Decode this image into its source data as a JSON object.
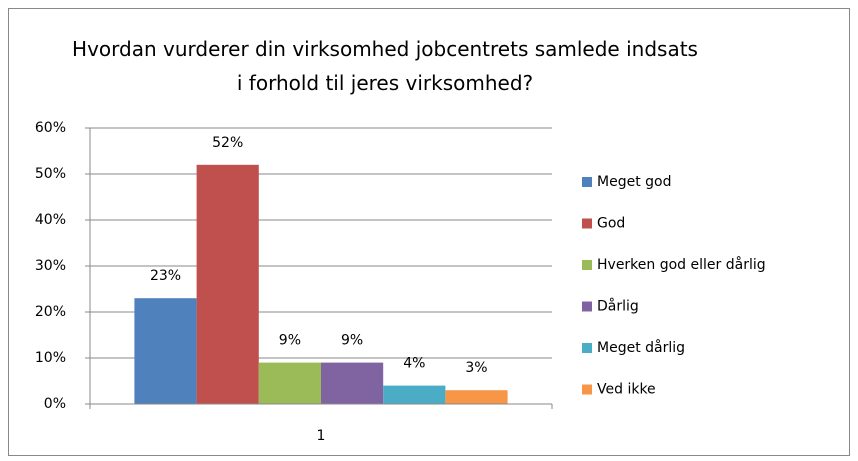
{
  "chart_data": {
    "type": "bar",
    "title": "Hvordan vurderer din virksomhed jobcentrets samlede indsats i forhold til jeres virksomhed?",
    "categories": [
      "1"
    ],
    "series": [
      {
        "name": "Meget god",
        "color": "#4f81bd",
        "values": [
          23
        ],
        "value_labels": [
          "23%"
        ]
      },
      {
        "name": "God",
        "color": "#c0504d",
        "values": [
          52
        ],
        "value_labels": [
          "52%"
        ]
      },
      {
        "name": "Hverken god eller dårlig",
        "color": "#9bbb59",
        "values": [
          9
        ],
        "value_labels": [
          "9%"
        ]
      },
      {
        "name": "Dårlig",
        "color": "#8064a2",
        "values": [
          9
        ],
        "value_labels": [
          "9%"
        ]
      },
      {
        "name": "Meget dårlig",
        "color": "#4bacc6",
        "values": [
          4
        ],
        "value_labels": [
          "4%"
        ]
      },
      {
        "name": "Ved ikke",
        "color": "#f79646",
        "values": [
          3
        ],
        "value_labels": [
          "3%"
        ]
      }
    ],
    "ylim": [
      0,
      60
    ],
    "yticks": [
      {
        "value": 0,
        "label": "0%"
      },
      {
        "value": 10,
        "label": "10%"
      },
      {
        "value": 20,
        "label": "20%"
      },
      {
        "value": 30,
        "label": "30%"
      },
      {
        "value": 40,
        "label": "40%"
      },
      {
        "value": 50,
        "label": "50%"
      },
      {
        "value": 60,
        "label": "60%"
      }
    ],
    "grid": true,
    "legend": "right"
  }
}
